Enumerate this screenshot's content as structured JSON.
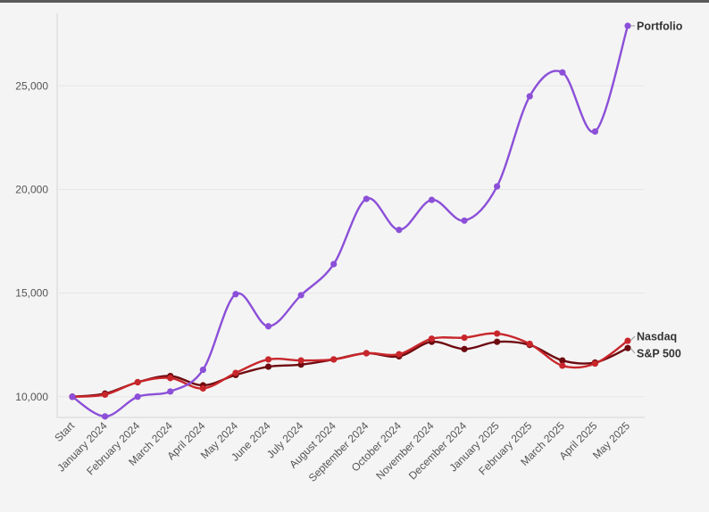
{
  "chart_data": {
    "type": "line",
    "categories": [
      "Start",
      "January 2024",
      "February 2024",
      "March 2024",
      "April 2024",
      "May 2024",
      "June 2024",
      "July 2024",
      "August 2024",
      "September 2024",
      "October 2024",
      "November 2024",
      "December 2024",
      "January 2025",
      "February 2025",
      "March 2025",
      "April 2025",
      "May 2025"
    ],
    "ylim": [
      9000,
      28500
    ],
    "yticks": [
      10000,
      15000,
      20000,
      25000
    ],
    "ytick_labels": [
      "10,000",
      "15,000",
      "20,000",
      "25,000"
    ],
    "grid": true,
    "legend": "direct labels at line ends (right)",
    "series": [
      {
        "name": "Portfolio",
        "color": "#8b4fd8",
        "values": [
          10000,
          9050,
          10000,
          10250,
          11300,
          14950,
          13400,
          14900,
          16400,
          19550,
          18050,
          19500,
          18500,
          20150,
          24500,
          25650,
          22800,
          27900
        ]
      },
      {
        "name": "Nasdaq",
        "color": "#c8262b",
        "values": [
          10000,
          10100,
          10700,
          10900,
          10400,
          11150,
          11800,
          11750,
          11800,
          12100,
          12050,
          12800,
          12850,
          13050,
          12550,
          11500,
          11600,
          12700
        ]
      },
      {
        "name": "S&P 500",
        "color": "#6e0b10",
        "values": [
          10000,
          10150,
          10700,
          11000,
          10550,
          11050,
          11450,
          11550,
          11800,
          12100,
          11950,
          12650,
          12300,
          12650,
          12500,
          11750,
          11650,
          12350
        ]
      }
    ]
  }
}
